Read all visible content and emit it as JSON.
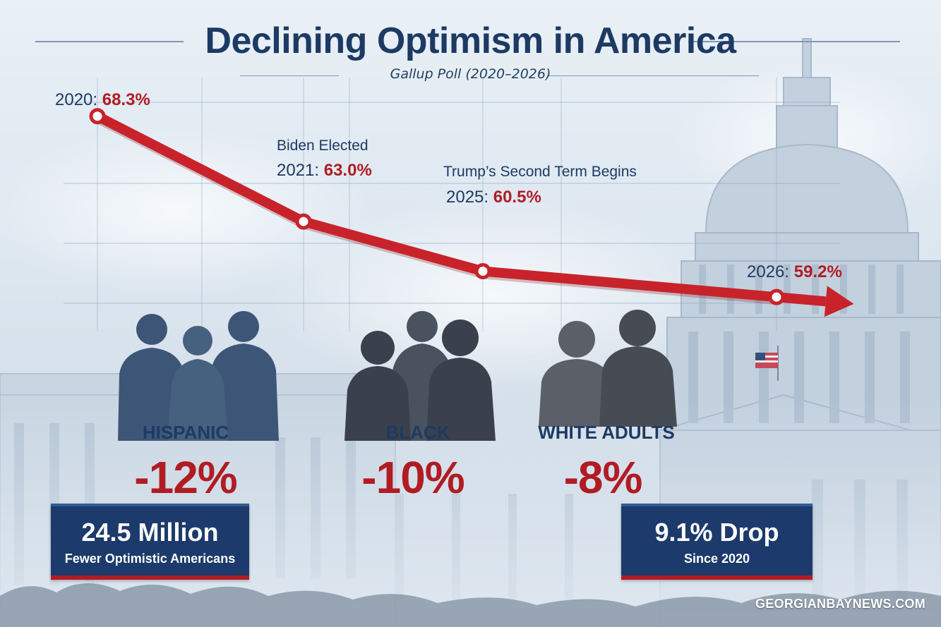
{
  "header": {
    "title": "Declining Optimism in America",
    "subtitle": "Gallup Poll (2020–2026)"
  },
  "chart_data": {
    "type": "line",
    "title": "Declining Optimism in America",
    "subtitle": "Gallup Poll (2020–2026)",
    "xlabel": "",
    "ylabel": "",
    "grid": true,
    "series": [
      {
        "color": "#c8232b",
        "points": [
          {
            "x": 2020,
            "y": 68.3,
            "label_year": "2020:",
            "label_value": "68.3%"
          },
          {
            "x": 2021,
            "y": 63.0,
            "label_year": "2021:",
            "label_value": "63.0%",
            "annotation": "Biden Elected"
          },
          {
            "x": 2025,
            "y": 60.5,
            "label_year": "2025:",
            "label_value": "60.5%",
            "annotation": "Trump’s Second Term Begins"
          },
          {
            "x": 2026,
            "y": 59.2,
            "label_year": "2026:",
            "label_value": "59.2%"
          }
        ]
      }
    ]
  },
  "groups": [
    {
      "name": "HISPANIC",
      "change": "-12%",
      "silhouette_color": "#3d5677"
    },
    {
      "name": "BLACK",
      "change": "-10%",
      "silhouette_color": "#3f4652"
    },
    {
      "name": "WHITE ADULTS",
      "change": "-8%",
      "silhouette_color": "#4a4f57"
    }
  ],
  "stats": [
    {
      "big": "24.5 Million",
      "small": "Fewer Optimistic Americans"
    },
    {
      "big": "9.1% Drop",
      "small": "Since 2020"
    }
  ],
  "credit": "GEORGIANBAYNEWS.COM",
  "colors": {
    "navy": "#1d3a64",
    "red": "#b11c24",
    "box": "#1c3a6b"
  }
}
